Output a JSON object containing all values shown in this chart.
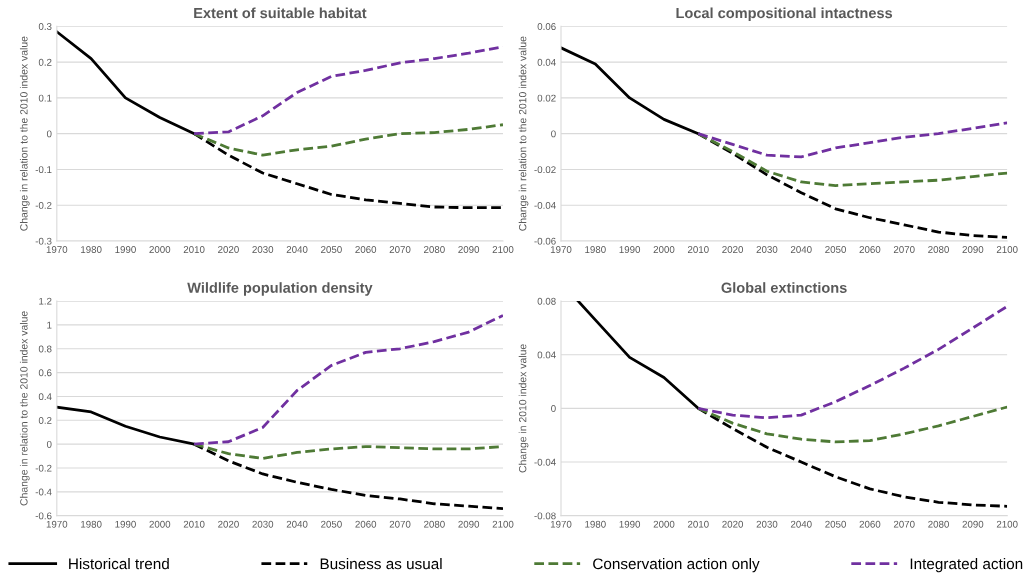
{
  "chart_data": [
    {
      "type": "line",
      "title": "Extent of suitable habitat",
      "ylabel": "Change in relation to the 2010 index value",
      "xlim": [
        1970,
        2100
      ],
      "xticks": [
        1970,
        1980,
        1990,
        2000,
        2010,
        2020,
        2030,
        2040,
        2050,
        2060,
        2070,
        2080,
        2090,
        2100
      ],
      "ylim": [
        -0.3,
        0.3
      ],
      "yticks": [
        -0.3,
        -0.2,
        -0.1,
        0,
        0.1,
        0.2,
        0.3
      ],
      "grid": "y",
      "legend": "bottom",
      "series": [
        {
          "name": "Historical trend",
          "color": "#000000",
          "line_style": "solid",
          "x": [
            1970,
            1980,
            1990,
            2000,
            2010
          ],
          "values": [
            0.285,
            0.21,
            0.1,
            0.045,
            0
          ]
        },
        {
          "name": "Business as usual",
          "color": "#000000",
          "line_style": "dashed",
          "x": [
            2010,
            2020,
            2030,
            2040,
            2050,
            2060,
            2070,
            2080,
            2090,
            2100
          ],
          "values": [
            0,
            -0.06,
            -0.11,
            -0.14,
            -0.17,
            -0.185,
            -0.195,
            -0.205,
            -0.207,
            -0.207
          ]
        },
        {
          "name": "Conservation action only",
          "color": "#4e7a35",
          "line_style": "dashed",
          "x": [
            2010,
            2020,
            2030,
            2040,
            2050,
            2060,
            2070,
            2080,
            2090,
            2100
          ],
          "values": [
            0,
            -0.04,
            -0.06,
            -0.045,
            -0.035,
            -0.015,
            0,
            0.003,
            0.012,
            0.025
          ]
        },
        {
          "name": "Integrated action",
          "color": "#7030a0",
          "line_style": "dashed",
          "x": [
            2010,
            2020,
            2030,
            2040,
            2050,
            2060,
            2070,
            2080,
            2090,
            2100
          ],
          "values": [
            0,
            0.005,
            0.05,
            0.115,
            0.16,
            0.177,
            0.198,
            0.21,
            0.225,
            0.243
          ]
        }
      ]
    },
    {
      "type": "line",
      "title": "Local compositional intactness",
      "ylabel": "Change in relation to the 2010 index value",
      "xlim": [
        1970,
        2100
      ],
      "xticks": [
        1970,
        1980,
        1990,
        2000,
        2010,
        2020,
        2030,
        2040,
        2050,
        2060,
        2070,
        2080,
        2090,
        2100
      ],
      "ylim": [
        -0.06,
        0.06
      ],
      "yticks": [
        -0.06,
        -0.04,
        -0.02,
        0,
        0.02,
        0.04,
        0.06
      ],
      "grid": "y",
      "series": [
        {
          "color": "#000000",
          "line_style": "solid",
          "x": [
            1970,
            1980,
            1990,
            2000,
            2010
          ],
          "values": [
            0.048,
            0.039,
            0.02,
            0.008,
            0
          ]
        },
        {
          "color": "#000000",
          "line_style": "dashed",
          "x": [
            2010,
            2020,
            2030,
            2040,
            2050,
            2060,
            2070,
            2080,
            2090,
            2100
          ],
          "values": [
            0,
            -0.011,
            -0.023,
            -0.033,
            -0.042,
            -0.047,
            -0.051,
            -0.055,
            -0.057,
            -0.058
          ]
        },
        {
          "color": "#4e7a35",
          "line_style": "dashed",
          "x": [
            2010,
            2020,
            2030,
            2040,
            2050,
            2060,
            2070,
            2080,
            2090,
            2100
          ],
          "values": [
            0,
            -0.01,
            -0.021,
            -0.027,
            -0.029,
            -0.028,
            -0.027,
            -0.026,
            -0.024,
            -0.022
          ]
        },
        {
          "color": "#7030a0",
          "line_style": "dashed",
          "x": [
            2010,
            2020,
            2030,
            2040,
            2050,
            2060,
            2070,
            2080,
            2090,
            2100
          ],
          "values": [
            0,
            -0.006,
            -0.012,
            -0.013,
            -0.008,
            -0.005,
            -0.002,
            0,
            0.003,
            0.006
          ]
        }
      ]
    },
    {
      "type": "line",
      "title": "Wildlife population density",
      "ylabel": "Change in relation to the 2010 index value",
      "xlim": [
        1970,
        2100
      ],
      "xticks": [
        1970,
        1980,
        1990,
        2000,
        2010,
        2020,
        2030,
        2040,
        2050,
        2060,
        2070,
        2080,
        2090,
        2100
      ],
      "ylim": [
        -0.6,
        1.2
      ],
      "yticks": [
        -0.6,
        -0.4,
        -0.2,
        0,
        0.2,
        0.4,
        0.6,
        0.8,
        1,
        1.2
      ],
      "grid": "y",
      "series": [
        {
          "color": "#000000",
          "line_style": "solid",
          "x": [
            1970,
            1980,
            1990,
            2000,
            2010
          ],
          "values": [
            0.31,
            0.27,
            0.15,
            0.06,
            0
          ]
        },
        {
          "color": "#000000",
          "line_style": "dashed",
          "x": [
            2010,
            2020,
            2030,
            2040,
            2050,
            2060,
            2070,
            2080,
            2090,
            2100
          ],
          "values": [
            0,
            -0.14,
            -0.25,
            -0.32,
            -0.38,
            -0.43,
            -0.46,
            -0.5,
            -0.52,
            -0.54
          ]
        },
        {
          "color": "#4e7a35",
          "line_style": "dashed",
          "x": [
            2010,
            2020,
            2030,
            2040,
            2050,
            2060,
            2070,
            2080,
            2090,
            2100
          ],
          "values": [
            0,
            -0.08,
            -0.12,
            -0.07,
            -0.04,
            -0.02,
            -0.03,
            -0.04,
            -0.04,
            -0.02
          ]
        },
        {
          "color": "#7030a0",
          "line_style": "dashed",
          "x": [
            2010,
            2020,
            2030,
            2040,
            2050,
            2060,
            2070,
            2080,
            2090,
            2100
          ],
          "values": [
            0,
            0.02,
            0.14,
            0.45,
            0.66,
            0.77,
            0.8,
            0.86,
            0.94,
            1.08
          ]
        }
      ]
    },
    {
      "type": "line",
      "title": "Global extinctions",
      "ylabel": "Change in 2010 index value",
      "xlim": [
        1970,
        2100
      ],
      "xticks": [
        1970,
        1980,
        1990,
        2000,
        2010,
        2020,
        2030,
        2040,
        2050,
        2060,
        2070,
        2080,
        2090,
        2100
      ],
      "ylim": [
        -0.08,
        0.08
      ],
      "yticks": [
        -0.08,
        -0.04,
        0,
        0.04,
        0.08
      ],
      "grid": "y",
      "series": [
        {
          "color": "#000000",
          "line_style": "solid",
          "x": [
            1975,
            1980,
            1990,
            2000,
            2010
          ],
          "values": [
            0.08,
            0.066,
            0.038,
            0.023,
            0
          ]
        },
        {
          "color": "#000000",
          "line_style": "dashed",
          "x": [
            2010,
            2020,
            2030,
            2040,
            2050,
            2060,
            2070,
            2080,
            2090,
            2100
          ],
          "values": [
            0,
            -0.015,
            -0.029,
            -0.04,
            -0.051,
            -0.06,
            -0.066,
            -0.07,
            -0.072,
            -0.073
          ]
        },
        {
          "color": "#4e7a35",
          "line_style": "dashed",
          "x": [
            2010,
            2020,
            2030,
            2040,
            2050,
            2060,
            2070,
            2080,
            2090,
            2100
          ],
          "values": [
            0,
            -0.011,
            -0.019,
            -0.023,
            -0.025,
            -0.024,
            -0.019,
            -0.013,
            -0.006,
            0.001
          ]
        },
        {
          "color": "#7030a0",
          "line_style": "dashed",
          "x": [
            2010,
            2020,
            2030,
            2040,
            2050,
            2060,
            2070,
            2080,
            2090,
            2100
          ],
          "values": [
            0,
            -0.005,
            -0.007,
            -0.005,
            0.005,
            0.017,
            0.03,
            0.044,
            0.06,
            0.076
          ]
        }
      ]
    }
  ]
}
